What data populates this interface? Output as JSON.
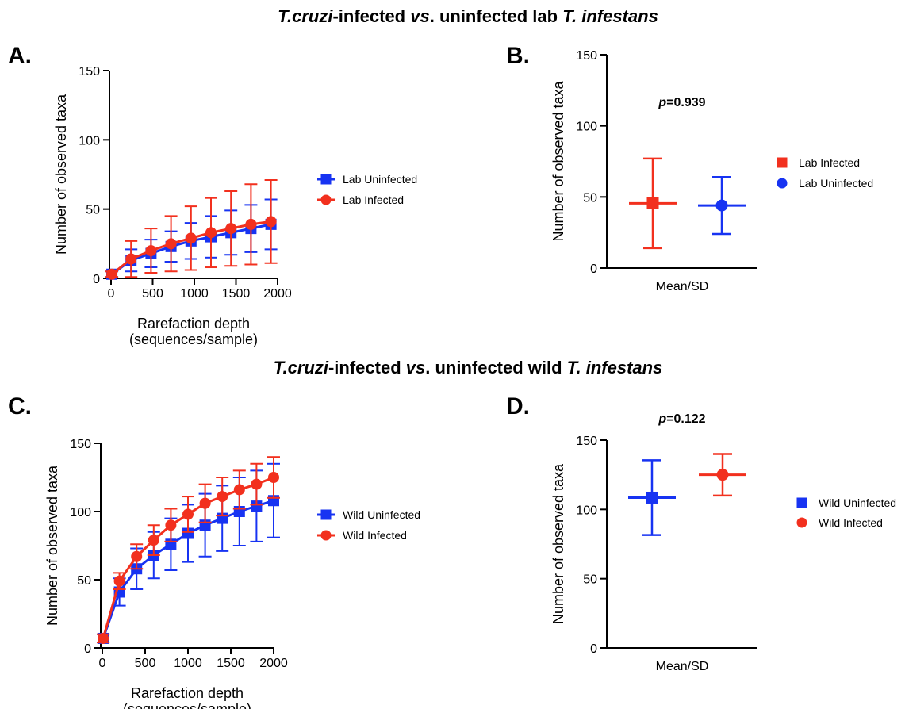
{
  "colors": {
    "blue": "#1733f2",
    "red": "#f2301e"
  },
  "sections": [
    {
      "title_parts": [
        {
          "text": "T.cruzi",
          "italic": true
        },
        {
          "text": "-infected ",
          "italic": false
        },
        {
          "text": "vs",
          "italic": true
        },
        {
          "text": ". uninfected lab ",
          "italic": false
        },
        {
          "text": "T. infestans",
          "italic": true
        }
      ]
    },
    {
      "title_parts": [
        {
          "text": "T.cruzi",
          "italic": true
        },
        {
          "text": "-infected ",
          "italic": false
        },
        {
          "text": "vs",
          "italic": true
        },
        {
          "text": ". uninfected wild ",
          "italic": false
        },
        {
          "text": "T. infestans",
          "italic": true
        }
      ]
    }
  ],
  "chart_data": [
    {
      "panel": "A.",
      "type": "line",
      "xlabel": [
        "Rarefaction depth",
        "(sequences/sample)"
      ],
      "ylabel": "Number  of observed taxa",
      "xlim": [
        0,
        2000
      ],
      "ylim": [
        0,
        150
      ],
      "xticks": [
        0,
        500,
        1000,
        1500,
        2000
      ],
      "yticks": [
        0,
        50,
        100,
        150
      ],
      "legend_position": "right",
      "series": [
        {
          "name": "Lab Uninfected",
          "color": "#1733f2",
          "marker": "square",
          "x": [
            10,
            240,
            480,
            720,
            960,
            1200,
            1440,
            1680,
            1920
          ],
          "y": [
            3,
            13,
            18,
            23,
            27,
            30,
            33,
            36,
            39
          ],
          "err": [
            2,
            8,
            10,
            11,
            13,
            15,
            16,
            17,
            18
          ]
        },
        {
          "name": "Lab Infected",
          "color": "#f2301e",
          "marker": "circle",
          "x": [
            10,
            240,
            480,
            720,
            960,
            1200,
            1440,
            1680,
            1920
          ],
          "y": [
            3,
            14,
            20,
            25,
            29,
            33,
            36,
            39,
            41
          ],
          "err": [
            2,
            13,
            16,
            20,
            23,
            25,
            27,
            29,
            30
          ]
        }
      ]
    },
    {
      "panel": "B.",
      "type": "scatter",
      "category": "Mean/SD",
      "ylabel": "Number  of observed taxa",
      "ylim": [
        0,
        150
      ],
      "yticks": [
        0,
        50,
        100,
        150
      ],
      "annotation": {
        "prefix": "p",
        "text": "=0.939"
      },
      "legend_position": "right",
      "series": [
        {
          "name": "Lab Infected",
          "color": "#f2301e",
          "marker": "square",
          "mean": 45.5,
          "sd": 31.5
        },
        {
          "name": "Lab Uninfected",
          "color": "#1733f2",
          "marker": "circle",
          "mean": 44,
          "sd": 20
        }
      ]
    },
    {
      "panel": "C.",
      "type": "line",
      "xlabel": [
        "Rarefaction depth",
        "(sequences/sample)"
      ],
      "ylabel": "Number  of observed taxa",
      "xlim": [
        0,
        2000
      ],
      "ylim": [
        0,
        150
      ],
      "xticks": [
        0,
        500,
        1000,
        1500,
        2000
      ],
      "yticks": [
        0,
        50,
        100,
        150
      ],
      "legend_position": "right",
      "series": [
        {
          "name": "Wild Uninfected",
          "color": "#1733f2",
          "marker": "square",
          "x": [
            10,
            200,
            400,
            600,
            800,
            1000,
            1200,
            1400,
            1600,
            1800,
            2000
          ],
          "y": [
            7,
            41,
            58,
            68,
            76,
            84,
            90,
            95,
            100,
            104,
            108
          ],
          "err": [
            3,
            10,
            15,
            17,
            19,
            21,
            23,
            24,
            25,
            26,
            27
          ]
        },
        {
          "name": "Wild Infected",
          "color": "#f2301e",
          "marker": "circle",
          "x": [
            10,
            200,
            400,
            600,
            800,
            1000,
            1200,
            1400,
            1600,
            1800,
            2000
          ],
          "y": [
            7,
            49,
            67,
            79,
            90,
            98,
            106,
            111,
            116,
            120,
            125
          ],
          "err": [
            3,
            6,
            9,
            11,
            12,
            13,
            14,
            14,
            14,
            15,
            15
          ]
        }
      ]
    },
    {
      "panel": "D.",
      "type": "scatter",
      "category": "Mean/SD",
      "ylabel": "Number  of observed taxa",
      "ylim": [
        0,
        150
      ],
      "yticks": [
        0,
        50,
        100,
        150
      ],
      "annotation": {
        "prefix": "p",
        "text": "=0.122"
      },
      "legend_position": "right",
      "series": [
        {
          "name": "Wild Uninfected",
          "color": "#1733f2",
          "marker": "square",
          "mean": 108.5,
          "sd": 27
        },
        {
          "name": "Wild Infected",
          "color": "#f2301e",
          "marker": "circle",
          "mean": 125,
          "sd": 15
        }
      ]
    }
  ]
}
